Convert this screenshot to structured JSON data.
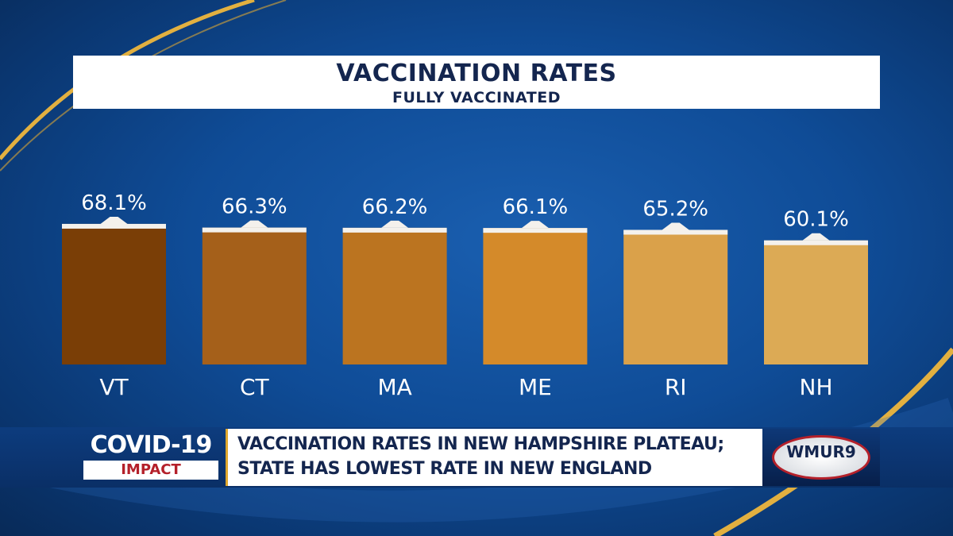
{
  "chart_data": {
    "type": "bar",
    "title": "VACCINATION RATES",
    "subtitle": "FULLY VACCINATED",
    "categories": [
      "VT",
      "CT",
      "MA",
      "ME",
      "RI",
      "NH"
    ],
    "values": [
      68.1,
      66.3,
      66.2,
      66.1,
      65.2,
      60.1
    ],
    "data_labels": [
      "68.1%",
      "66.3%",
      "66.2%",
      "66.1%",
      "65.2%",
      "60.1%"
    ],
    "unit": "%",
    "colors": [
      "#7a3e06",
      "#a5601a",
      "#bb7420",
      "#d48a2a",
      "#daa14a",
      "#dcaa55"
    ],
    "ylim": [
      0,
      100
    ],
    "grid": false
  },
  "lower_third": {
    "badge_top": "COVID-19",
    "badge_bottom": "IMPACT",
    "headline_line1": "VACCINATION RATES IN NEW HAMPSHIRE PLATEAU;",
    "headline_line2": "STATE HAS LOWEST RATE IN NEW ENGLAND",
    "logo": "WMUR9"
  }
}
